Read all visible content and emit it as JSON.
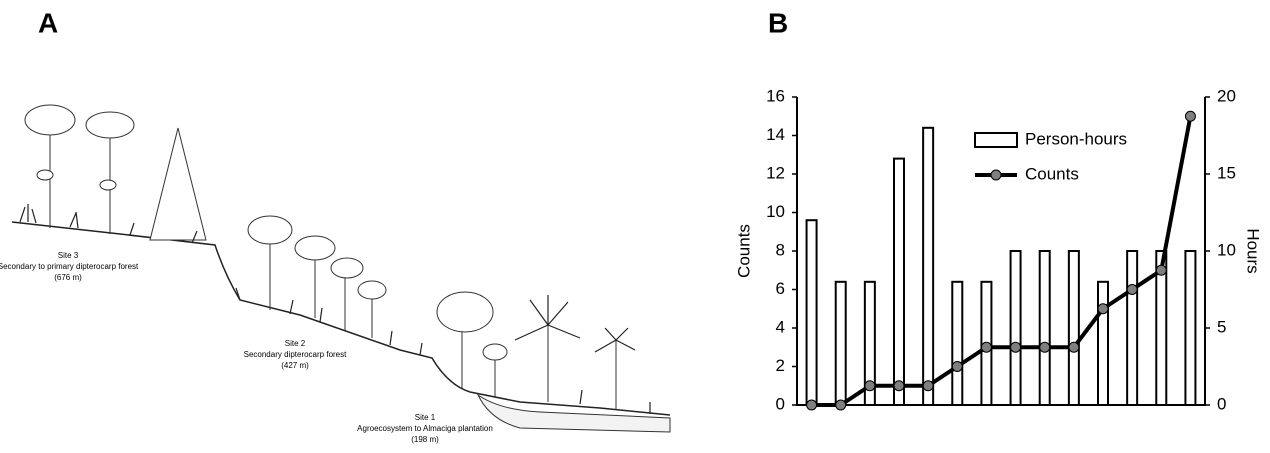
{
  "panel_a": {
    "label": "A",
    "sites": [
      {
        "name": "Site 3",
        "description": "Secondary to primary dipterocarp forest",
        "elevation": "(676 m)"
      },
      {
        "name": "Site 2",
        "description": "Secondary dipterocarp forest",
        "elevation": "(427 m)"
      },
      {
        "name": "Site 1",
        "description": "Agroecosystem to Almaciga plantation",
        "elevation": "(198 m)"
      }
    ]
  },
  "chart_data": {
    "type": "bar",
    "panel_label": "B",
    "categories": [
      null,
      null,
      null,
      null,
      null,
      null,
      null,
      null,
      null,
      null,
      null,
      null,
      null,
      null
    ],
    "series": [
      {
        "name": "Person-hours",
        "type": "bar",
        "axis": "y2",
        "color": "#ffffff",
        "edgecolor": "#000000",
        "values": [
          12,
          8,
          8,
          16,
          18,
          8,
          8,
          10,
          10,
          10,
          8,
          10,
          10,
          10
        ]
      },
      {
        "name": "Counts",
        "type": "line",
        "color": "#000000",
        "marker_color": "#7f7f7f",
        "values": [
          0,
          0,
          1,
          1,
          1,
          2,
          3,
          3,
          3,
          3,
          5,
          6,
          7,
          15
        ]
      }
    ],
    "ylabel": "Counts",
    "y2label": "Hours",
    "ylim": [
      0,
      16
    ],
    "yticks": [
      0,
      2,
      4,
      6,
      8,
      10,
      12,
      14,
      16
    ],
    "y2lim": [
      0,
      20
    ],
    "y2ticks": [
      0,
      5,
      10,
      15,
      20
    ],
    "grid": false,
    "legend": "upper center"
  }
}
